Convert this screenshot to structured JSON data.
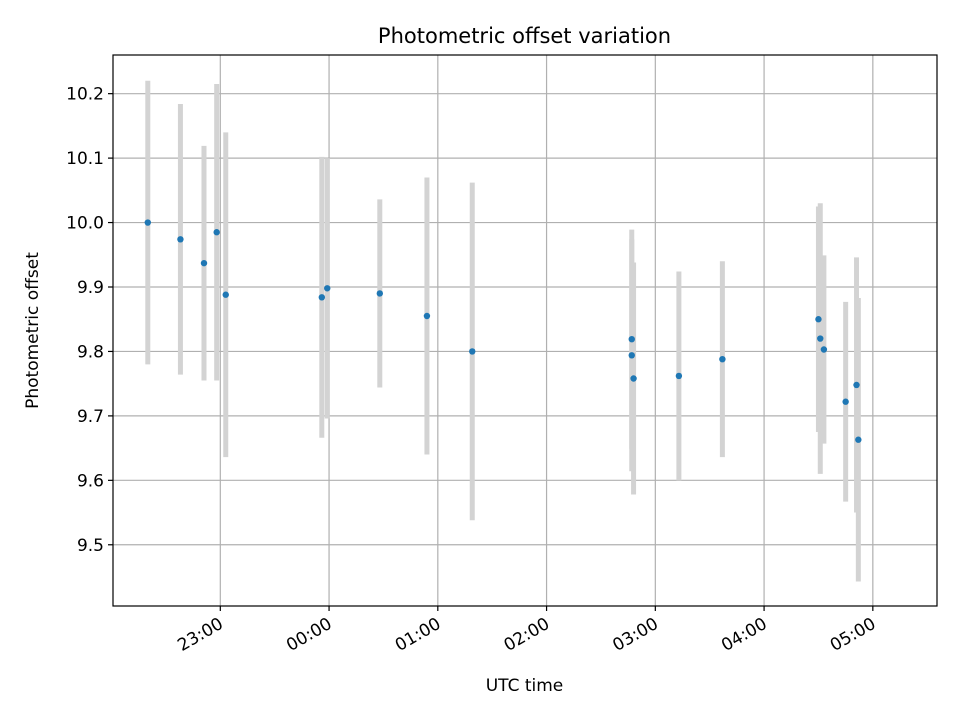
{
  "chart_data": {
    "type": "scatter",
    "title": "Photometric offset variation",
    "xlabel": "UTC time",
    "ylabel": "Photometric offset",
    "grid": true,
    "xlim": [
      "22:00:48",
      "05:35:24"
    ],
    "ylim": [
      9.405,
      10.26
    ],
    "xticks": [
      "23:00",
      "00:00",
      "01:00",
      "02:00",
      "03:00",
      "04:00",
      "05:00"
    ],
    "yticks": [
      "9.5",
      "9.6",
      "9.7",
      "9.8",
      "9.9",
      "10.0",
      "10.1",
      "10.2"
    ],
    "colors": {
      "point": "#1f77b4",
      "errorbar": "#d3d3d3",
      "grid": "#b0b0b0",
      "axes": "#000000"
    },
    "points": [
      {
        "t": "22:20",
        "y": 10.0,
        "err": 0.22
      },
      {
        "t": "22:38",
        "y": 9.974,
        "err": 0.21
      },
      {
        "t": "22:51",
        "y": 9.937,
        "err": 0.182
      },
      {
        "t": "22:58",
        "y": 9.985,
        "err": 0.23
      },
      {
        "t": "23:03",
        "y": 9.888,
        "err": 0.252
      },
      {
        "t": "23:56",
        "y": 9.884,
        "err": 0.218
      },
      {
        "t": "23:59",
        "y": 9.898,
        "err": 0.202
      },
      {
        "t": "00:28",
        "y": 9.89,
        "err": 0.146
      },
      {
        "t": "00:54",
        "y": 9.855,
        "err": 0.215
      },
      {
        "t": "01:19",
        "y": 9.8,
        "err": 0.262
      },
      {
        "t": "02:47",
        "y": 9.819,
        "err": 0.17
      },
      {
        "t": "02:47",
        "y": 9.794,
        "err": 0.18
      },
      {
        "t": "02:48",
        "y": 9.758,
        "err": 0.18
      },
      {
        "t": "03:13",
        "y": 9.762,
        "err": 0.162
      },
      {
        "t": "03:37",
        "y": 9.788,
        "err": 0.152
      },
      {
        "t": "04:30",
        "y": 9.85,
        "err": 0.175
      },
      {
        "t": "04:31",
        "y": 9.82,
        "err": 0.21
      },
      {
        "t": "04:33",
        "y": 9.803,
        "err": 0.146
      },
      {
        "t": "04:45",
        "y": 9.722,
        "err": 0.155
      },
      {
        "t": "04:51",
        "y": 9.748,
        "err": 0.198
      },
      {
        "t": "04:52",
        "y": 9.663,
        "err": 0.22
      }
    ]
  }
}
